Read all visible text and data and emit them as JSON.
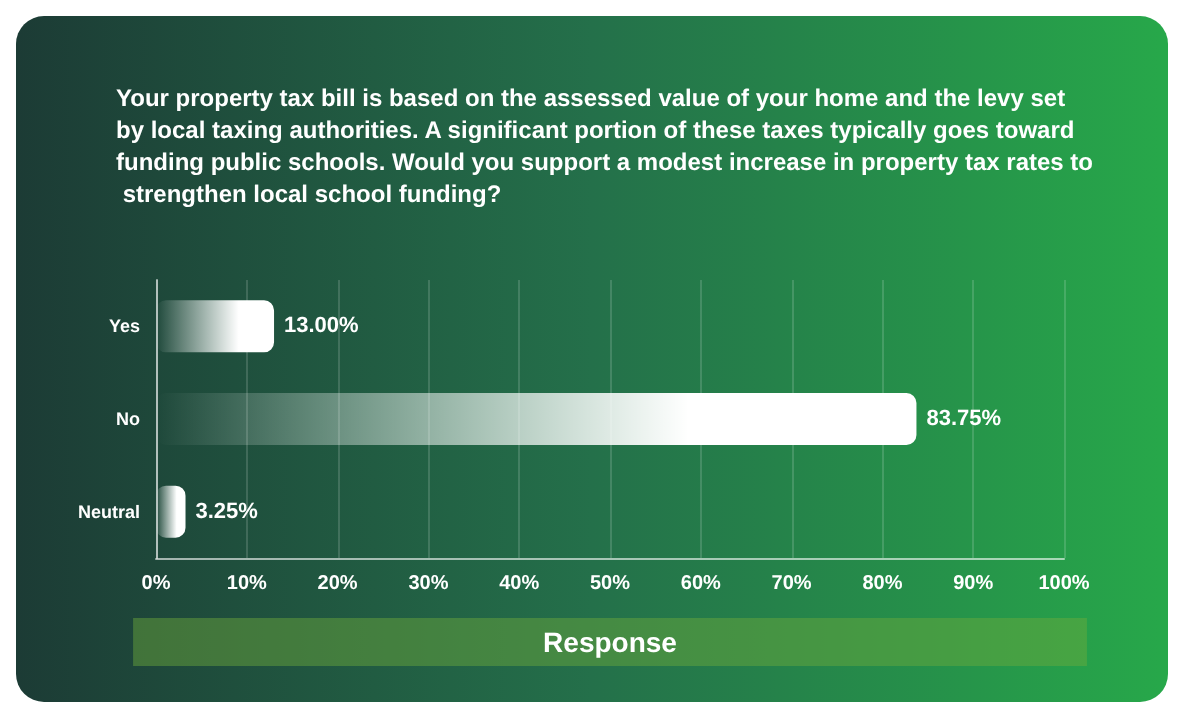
{
  "chart_data": {
    "type": "bar",
    "orientation": "horizontal",
    "title": "Your property tax bill is based on the assessed value of your home and the levy set by local taxing authorities. A significant portion of these taxes typically goes toward funding public schools. Would you support a modest increase in property tax rates to strengthen local school funding?",
    "xlabel": "Response",
    "categories": [
      "Yes",
      "No",
      "Neutral"
    ],
    "values": [
      13.0,
      83.75,
      3.25
    ],
    "value_labels": [
      "13.00%",
      "83.75%",
      "3.25%"
    ],
    "color": "#ffffff",
    "xlim": [
      0,
      100
    ],
    "xticks": [
      {
        "value": 0,
        "label": "0%"
      },
      {
        "value": 10,
        "label": "10%"
      },
      {
        "value": 20,
        "label": "20%"
      },
      {
        "value": 30,
        "label": "30%"
      },
      {
        "value": 40,
        "label": "40%"
      },
      {
        "value": 50,
        "label": "50%"
      },
      {
        "value": 60,
        "label": "60%"
      },
      {
        "value": 70,
        "label": "70%"
      },
      {
        "value": 80,
        "label": "80%"
      },
      {
        "value": 90,
        "label": "90%"
      },
      {
        "value": 100,
        "label": "100%"
      }
    ],
    "grid": "x"
  }
}
